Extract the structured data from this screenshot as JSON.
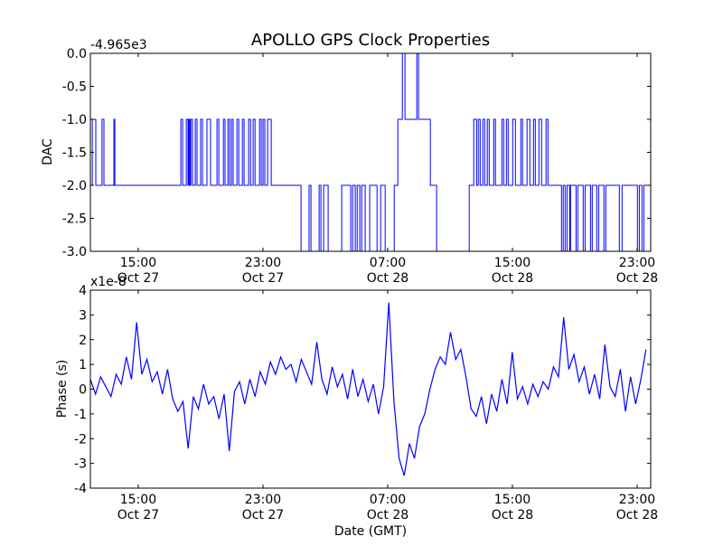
{
  "chart_data": [
    {
      "type": "line",
      "title": "APOLLO GPS Clock Properties",
      "ylabel": "DAC",
      "xlabel": "",
      "offset_text": "-4.965e3",
      "x_unit": "hours since Oct 27 00:00 GMT",
      "xlim": [
        11.93,
        47.87
      ],
      "ylim": [
        -3.0,
        0.0
      ],
      "yticks": [
        0.0,
        -0.5,
        -1.0,
        -1.5,
        -2.0,
        -2.5,
        -3.0
      ],
      "ytick_labels": [
        "0.0",
        "-0.5",
        "-1.0",
        "-1.5",
        "-2.0",
        "-2.5",
        "-3.0"
      ],
      "xticks": [
        15,
        23,
        31,
        39,
        47
      ],
      "xtick_labels": [
        [
          "15:00",
          "Oct 27"
        ],
        [
          "23:00",
          "Oct 27"
        ],
        [
          "07:00",
          "Oct 28"
        ],
        [
          "15:00",
          "Oct 28"
        ],
        [
          "23:00",
          "Oct 28"
        ]
      ],
      "color": "#0000ff",
      "step": true,
      "series": [
        {
          "name": "DAC",
          "points": [
            [
              11.93,
              -2
            ],
            [
              12.05,
              -1
            ],
            [
              12.28,
              -2
            ],
            [
              12.68,
              -1
            ],
            [
              12.8,
              -2
            ],
            [
              13.44,
              -1
            ],
            [
              13.5,
              -2
            ],
            [
              17.73,
              -1
            ],
            [
              17.85,
              -2
            ],
            [
              18.08,
              -1
            ],
            [
              18.19,
              -2
            ],
            [
              18.25,
              -1
            ],
            [
              18.31,
              -2
            ],
            [
              18.37,
              -1
            ],
            [
              18.48,
              -2
            ],
            [
              18.66,
              -1
            ],
            [
              18.77,
              -2
            ],
            [
              19.0,
              -1
            ],
            [
              19.12,
              -2
            ],
            [
              19.41,
              -1
            ],
            [
              19.64,
              -2
            ],
            [
              20.05,
              -1
            ],
            [
              20.17,
              -2
            ],
            [
              20.46,
              -1
            ],
            [
              20.57,
              -2
            ],
            [
              20.75,
              -1
            ],
            [
              20.86,
              -2
            ],
            [
              20.98,
              -1
            ],
            [
              21.09,
              -2
            ],
            [
              21.33,
              -1
            ],
            [
              21.45,
              -2
            ],
            [
              21.68,
              -1
            ],
            [
              21.79,
              -2
            ],
            [
              22.08,
              -1
            ],
            [
              22.2,
              -2
            ],
            [
              22.37,
              -1
            ],
            [
              22.49,
              -2
            ],
            [
              22.78,
              -1
            ],
            [
              22.89,
              -2
            ],
            [
              23.01,
              -1
            ],
            [
              23.12,
              -2
            ],
            [
              23.3,
              -1
            ],
            [
              23.53,
              -2
            ],
            [
              25.44,
              -3
            ],
            [
              25.96,
              -2
            ],
            [
              26.08,
              -3
            ],
            [
              26.6,
              -2
            ],
            [
              26.72,
              -3
            ],
            [
              26.89,
              -2
            ],
            [
              27.18,
              -3
            ],
            [
              28.05,
              -2
            ],
            [
              28.63,
              -3
            ],
            [
              28.75,
              -2
            ],
            [
              28.92,
              -3
            ],
            [
              29.04,
              -2
            ],
            [
              29.21,
              -3
            ],
            [
              29.33,
              -2
            ],
            [
              29.56,
              -3
            ],
            [
              29.85,
              -2
            ],
            [
              30.32,
              -3
            ],
            [
              30.55,
              -2
            ],
            [
              30.84,
              -3
            ],
            [
              31.42,
              -2
            ],
            [
              31.65,
              -1
            ],
            [
              31.94,
              0
            ],
            [
              32.11,
              -1
            ],
            [
              32.87,
              0
            ],
            [
              32.98,
              -1
            ],
            [
              33.74,
              -2
            ],
            [
              34.14,
              -3
            ],
            [
              36.23,
              -2
            ],
            [
              36.52,
              -1
            ],
            [
              36.7,
              -2
            ],
            [
              36.81,
              -1
            ],
            [
              36.93,
              -2
            ],
            [
              37.1,
              -1
            ],
            [
              37.22,
              -2
            ],
            [
              37.39,
              -1
            ],
            [
              37.51,
              -2
            ],
            [
              37.8,
              -1
            ],
            [
              37.91,
              -2
            ],
            [
              38.32,
              -1
            ],
            [
              38.44,
              -2
            ],
            [
              38.61,
              -1
            ],
            [
              38.73,
              -2
            ],
            [
              39.02,
              -1
            ],
            [
              39.19,
              -2
            ],
            [
              39.54,
              -1
            ],
            [
              39.65,
              -2
            ],
            [
              39.94,
              -1
            ],
            [
              40.12,
              -2
            ],
            [
              40.35,
              -1
            ],
            [
              40.47,
              -2
            ],
            [
              40.7,
              -1
            ],
            [
              40.87,
              -2
            ],
            [
              41.16,
              -1
            ],
            [
              41.28,
              -2
            ],
            [
              42.15,
              -3
            ],
            [
              42.26,
              -2
            ],
            [
              42.38,
              -3
            ],
            [
              42.5,
              -2
            ],
            [
              42.67,
              -3
            ],
            [
              42.73,
              -2
            ],
            [
              43.08,
              -3
            ],
            [
              43.19,
              -2
            ],
            [
              43.54,
              -3
            ],
            [
              43.66,
              -2
            ],
            [
              44.01,
              -3
            ],
            [
              44.12,
              -2
            ],
            [
              44.41,
              -3
            ],
            [
              44.53,
              -2
            ],
            [
              44.87,
              -3
            ],
            [
              44.99,
              -2
            ],
            [
              45.86,
              -3
            ],
            [
              46.03,
              -2
            ],
            [
              47.02,
              -3
            ],
            [
              47.14,
              -2
            ],
            [
              47.31,
              -3
            ],
            [
              47.43,
              -2
            ],
            [
              47.87,
              -2
            ]
          ]
        }
      ]
    },
    {
      "type": "line",
      "title": "",
      "ylabel": "Phase (s)",
      "xlabel": "Date (GMT)",
      "offset_text": "x1e-8",
      "x_unit": "hours since Oct 27 00:00 GMT",
      "xlim": [
        11.93,
        47.87
      ],
      "ylim": [
        -4,
        4
      ],
      "yticks": [
        4,
        3,
        2,
        1,
        0,
        -1,
        -2,
        -3,
        -4
      ],
      "ytick_labels": [
        "4",
        "3",
        "2",
        "1",
        "0",
        "-1",
        "-2",
        "-3",
        "-4"
      ],
      "xticks": [
        15,
        23,
        31,
        39,
        47
      ],
      "xtick_labels": [
        [
          "15:00",
          "Oct 27"
        ],
        [
          "23:00",
          "Oct 27"
        ],
        [
          "07:00",
          "Oct 28"
        ],
        [
          "15:00",
          "Oct 28"
        ],
        [
          "23:00",
          "Oct 28"
        ]
      ],
      "color": "#0000ff",
      "x_start": 11.93,
      "x_step": 0.33,
      "series": [
        {
          "name": "Phase (x1e-8 s)",
          "values": [
            0.4,
            -0.2,
            0.5,
            0.1,
            -0.3,
            0.6,
            0.2,
            1.3,
            0.4,
            2.7,
            0.6,
            1.2,
            0.3,
            0.7,
            -0.2,
            0.8,
            -0.4,
            -0.9,
            -0.5,
            -2.4,
            -0.3,
            -0.8,
            0.2,
            -0.6,
            -0.3,
            -1.2,
            -0.2,
            -2.5,
            -0.1,
            0.3,
            -0.6,
            0.4,
            -0.3,
            0.7,
            0.2,
            1.1,
            0.6,
            1.3,
            0.8,
            1.0,
            0.3,
            1.2,
            0.7,
            0.2,
            1.9,
            0.4,
            -0.2,
            0.9,
            0.1,
            0.6,
            -0.4,
            0.8,
            -0.3,
            0.4,
            -0.5,
            0.2,
            -1.0,
            0.1,
            3.5,
            -0.5,
            -2.8,
            -3.5,
            -2.2,
            -2.8,
            -1.5,
            -1.0,
            0.0,
            0.8,
            1.3,
            1.0,
            2.3,
            1.2,
            1.6,
            0.5,
            -0.8,
            -1.1,
            -0.3,
            -1.4,
            -0.2,
            -0.9,
            0.4,
            -0.6,
            1.5,
            -0.4,
            0.1,
            -0.6,
            0.2,
            -0.3,
            0.3,
            0.0,
            0.9,
            0.5,
            2.9,
            0.8,
            1.4,
            0.3,
            0.9,
            -0.2,
            0.6,
            -0.4,
            1.8,
            0.1,
            -0.3,
            0.8,
            -0.9,
            0.5,
            -0.6,
            0.4,
            1.6
          ]
        }
      ]
    }
  ]
}
